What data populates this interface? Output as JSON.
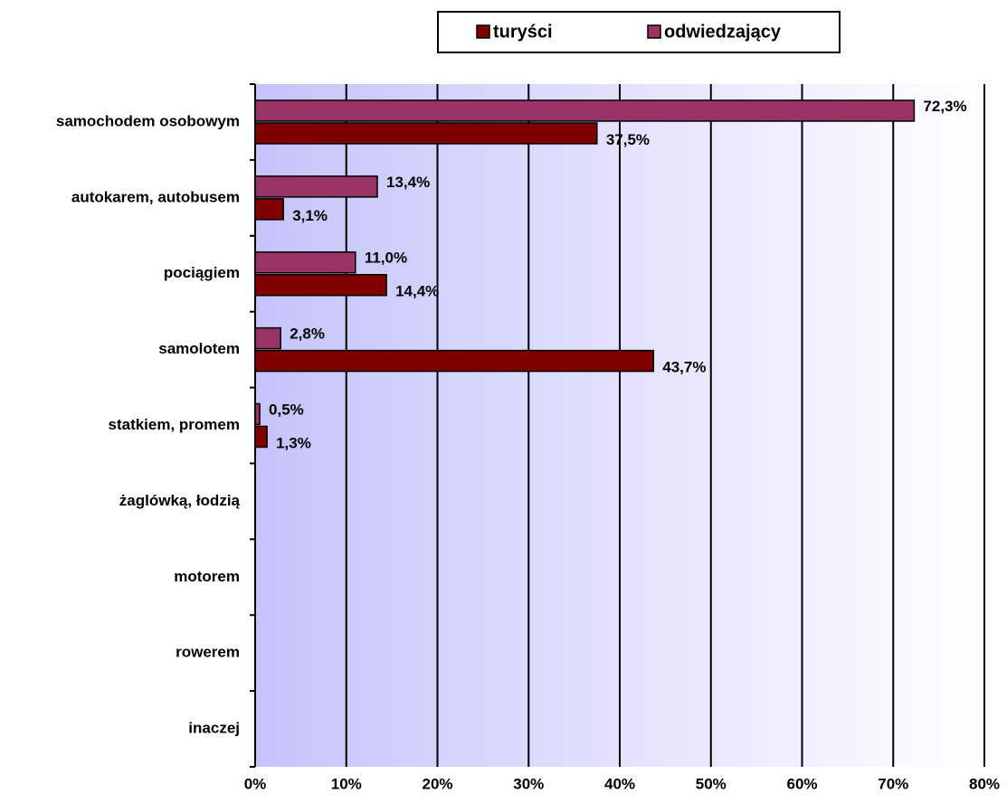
{
  "chart_data": {
    "type": "hbar",
    "categories": [
      "samochodem osobowym",
      "autokarem, autobusem",
      "pociągiem",
      "samolotem",
      "statkiem, promem",
      "żaglówką, łodzią",
      "motorem",
      "rowerem",
      "inaczej"
    ],
    "series": [
      {
        "name": "odwiedzający",
        "color": "#993366",
        "values": [
          72.3,
          13.4,
          11.0,
          2.8,
          0.5,
          null,
          null,
          null,
          null
        ],
        "value_labels": [
          "72,3%",
          "13,4%",
          "11,0%",
          "2,8%",
          "0,5%",
          null,
          null,
          null,
          null
        ]
      },
      {
        "name": "turyści",
        "color": "#800000",
        "values": [
          37.5,
          3.1,
          14.4,
          43.7,
          1.3,
          null,
          null,
          null,
          null
        ],
        "value_labels": [
          "37,5%",
          "3,1%",
          "14,4%",
          "43,7%",
          "1,3%",
          null,
          null,
          null,
          null
        ]
      }
    ],
    "xlim": [
      0,
      80
    ],
    "xticks": [
      {
        "value": 0,
        "label": "0%"
      },
      {
        "value": 10,
        "label": "10%"
      },
      {
        "value": 20,
        "label": "20%"
      },
      {
        "value": 30,
        "label": "30%"
      },
      {
        "value": 40,
        "label": "40%"
      },
      {
        "value": 50,
        "label": "50%"
      },
      {
        "value": 60,
        "label": "60%"
      },
      {
        "value": 70,
        "label": "70%"
      },
      {
        "value": 80,
        "label": "80%"
      }
    ],
    "grid": true,
    "legend": "top"
  }
}
